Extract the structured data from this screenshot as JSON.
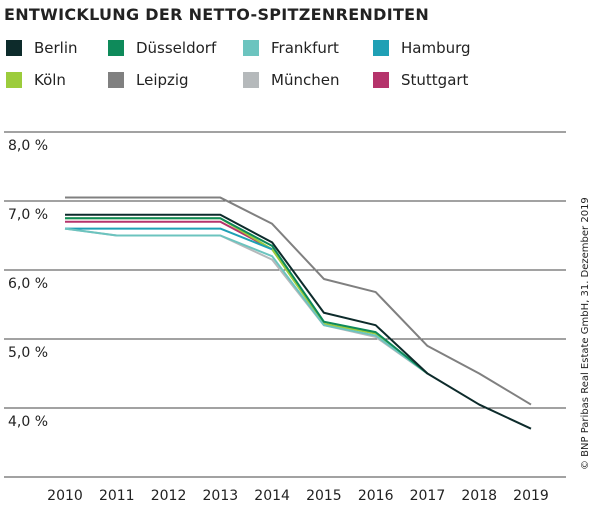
{
  "chart_data": {
    "type": "line",
    "title": "ENTWICKLUNG DER NETTO-SPITZENRENDITEN",
    "source": "© BNP Paribas Real Estate GmbH, 31. Dezember 2019",
    "x": [
      "2010",
      "2011",
      "2012",
      "2013",
      "2014",
      "2015",
      "2016",
      "2017",
      "2018",
      "2019"
    ],
    "series": [
      {
        "name": "Berlin",
        "color": "#0d2b2b",
        "values": [
          6.8,
          6.8,
          6.8,
          6.8,
          6.4,
          5.38,
          5.2,
          4.5,
          4.05,
          3.7
        ]
      },
      {
        "name": "Düsseldorf",
        "color": "#0e8a5a",
        "values": [
          6.75,
          6.75,
          6.75,
          6.75,
          6.35,
          5.25,
          5.1,
          4.5,
          null,
          null
        ]
      },
      {
        "name": "Frankfurt",
        "color": "#6cc4bf",
        "values": [
          6.6,
          6.5,
          6.5,
          6.5,
          6.2,
          5.2,
          5.05,
          4.5,
          null,
          null
        ]
      },
      {
        "name": "Hamburg",
        "color": "#1fa0b5",
        "values": [
          6.6,
          6.6,
          6.6,
          6.6,
          6.3,
          null,
          null,
          null,
          null,
          null
        ]
      },
      {
        "name": "Köln",
        "color": "#9ccc3c",
        "values": [
          6.75,
          6.75,
          6.75,
          6.75,
          6.3,
          5.22,
          5.08,
          4.5,
          null,
          null
        ]
      },
      {
        "name": "Leipzig",
        "color": "#808080",
        "values": [
          7.05,
          7.05,
          7.05,
          7.05,
          6.67,
          5.87,
          5.68,
          4.9,
          4.5,
          4.05
        ]
      },
      {
        "name": "München",
        "color": "#b5b9bb",
        "values": [
          6.6,
          6.5,
          6.5,
          6.5,
          6.15,
          5.2,
          5.03,
          4.5,
          null,
          null
        ]
      },
      {
        "name": "Stuttgart",
        "color": "#b5336b",
        "values": [
          6.7,
          6.7,
          6.7,
          6.7,
          6.3,
          null,
          null,
          null,
          null,
          null
        ]
      }
    ],
    "ylim": [
      3,
      8
    ],
    "yticks": [
      {
        "value": 4,
        "label": "4,0 %"
      },
      {
        "value": 5,
        "label": "5,0 %"
      },
      {
        "value": 6,
        "label": "6,0 %"
      },
      {
        "value": 7,
        "label": "7,0 %"
      },
      {
        "value": 8,
        "label": "8,0 %"
      }
    ],
    "grid": true
  }
}
